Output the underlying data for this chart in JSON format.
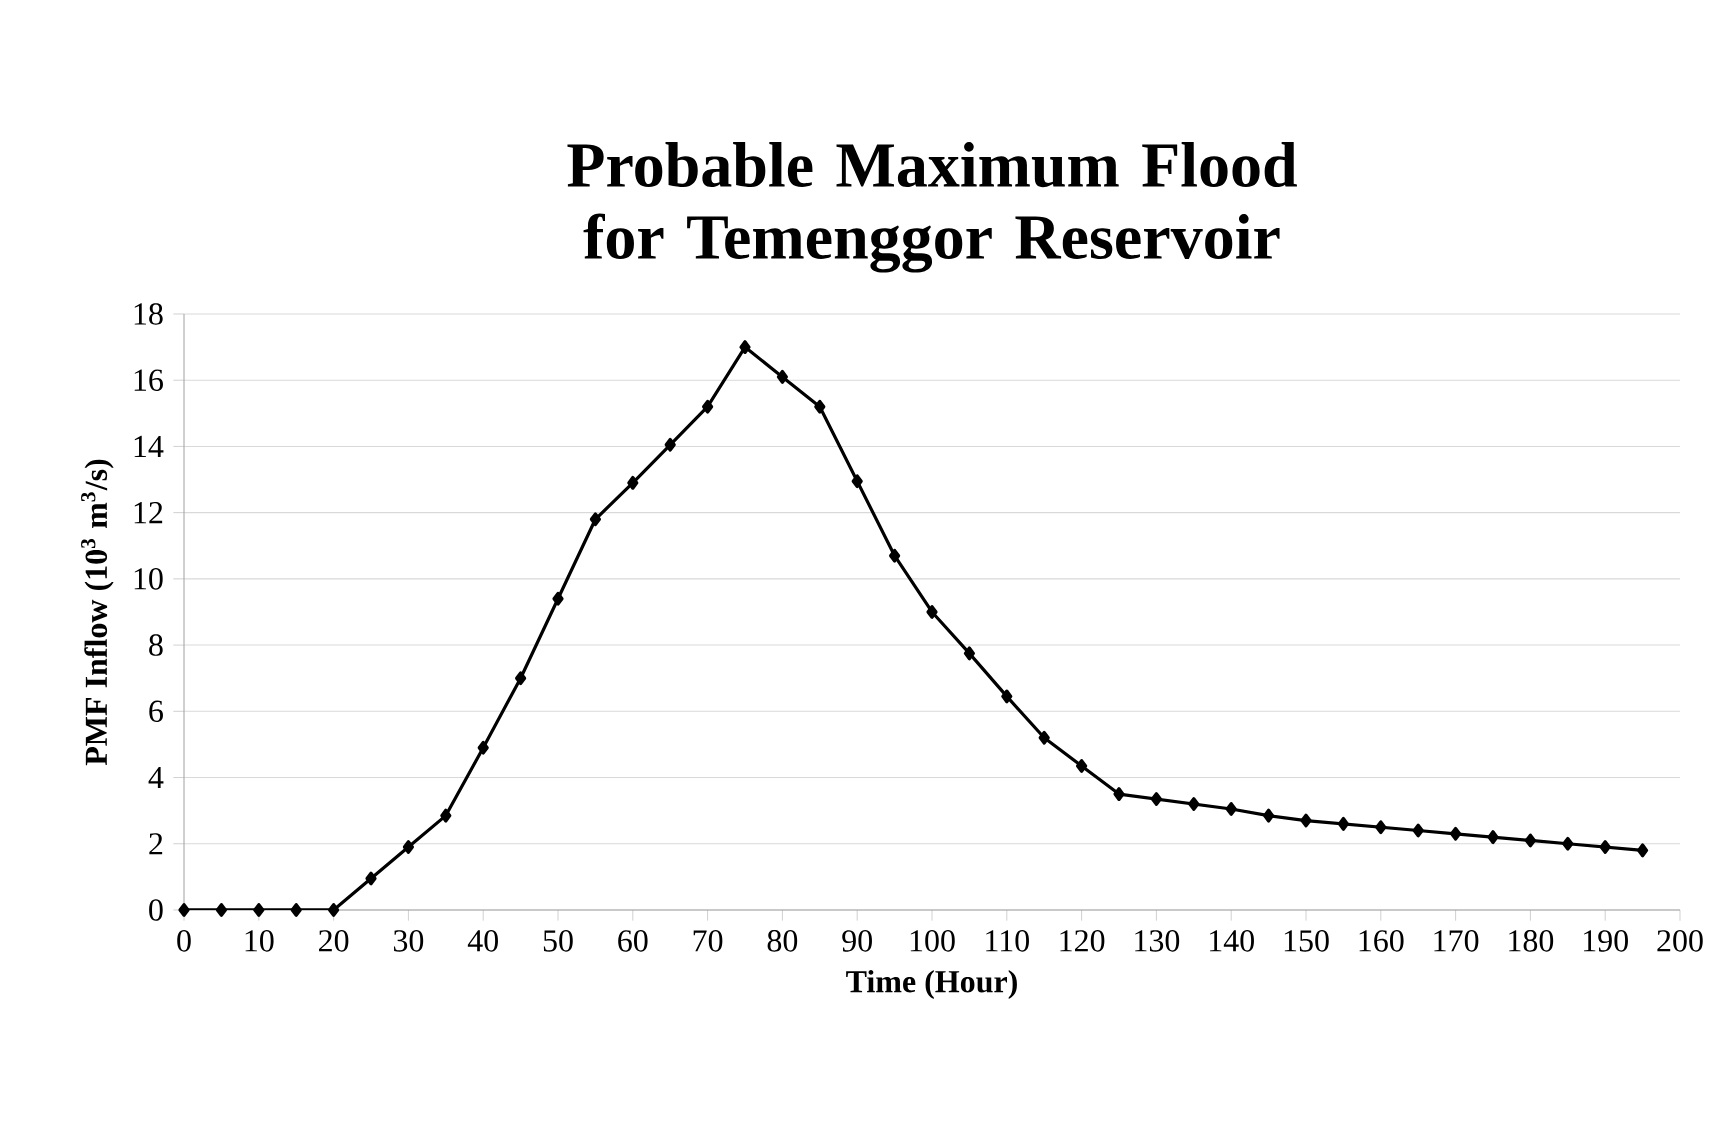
{
  "chart_data": {
    "type": "line",
    "title": "Probable Maximum Flood for Temenggor Reservoir",
    "xlabel": "Time (Hour)",
    "ylabel": "PMF Inflow (10$^{3}$ m$^{3}$/s)",
    "x": [
      0,
      5,
      10,
      15,
      20,
      25,
      30,
      35,
      40,
      45,
      50,
      55,
      60,
      65,
      70,
      75,
      80,
      85,
      90,
      95,
      100,
      105,
      110,
      115,
      120,
      125,
      130,
      135,
      140,
      145,
      150,
      155,
      160,
      165,
      170,
      175,
      180,
      185,
      190,
      195
    ],
    "series": [
      {
        "color": "#000000",
        "values": [
          0,
          0,
          0,
          0,
          0,
          0.95,
          1.9,
          2.85,
          4.9,
          7.0,
          9.4,
          11.8,
          12.9,
          14.05,
          15.2,
          17.0,
          16.1,
          15.2,
          12.95,
          10.7,
          9.0,
          7.75,
          6.45,
          5.2,
          4.35,
          3.5,
          3.35,
          3.2,
          3.05,
          2.85,
          2.7,
          2.6,
          2.5,
          2.4,
          2.3,
          2.2,
          2.1,
          2.0,
          1.9,
          1.8
        ]
      }
    ],
    "xlim": [
      0,
      200
    ],
    "xticks": [
      0,
      10,
      20,
      30,
      40,
      50,
      60,
      70,
      80,
      90,
      100,
      110,
      120,
      130,
      140,
      150,
      160,
      170,
      180,
      190,
      200
    ],
    "ylim": [
      0,
      18
    ],
    "yticks": [
      0,
      2,
      4,
      6,
      8,
      10,
      12,
      14,
      16,
      18
    ],
    "grid": "y",
    "marker": "diamond",
    "line_style": "solid"
  }
}
